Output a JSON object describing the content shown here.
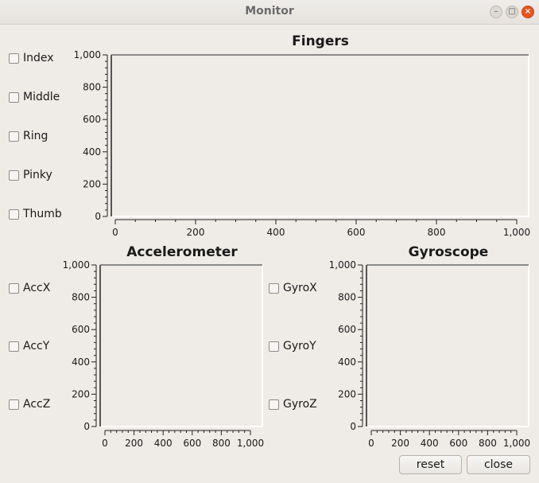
{
  "window": {
    "title": "Monitor"
  },
  "fingers": {
    "title": "Fingers",
    "checkboxes": [
      "Index",
      "Middle",
      "Ring",
      "Pinky",
      "Thumb"
    ],
    "y_ticks": [
      "1,000",
      "800",
      "600",
      "400",
      "200",
      "0"
    ],
    "x_ticks": [
      "0",
      "200",
      "400",
      "600",
      "800",
      "1,000"
    ]
  },
  "accelerometer": {
    "title": "Accelerometer",
    "checkboxes": [
      "AccX",
      "AccY",
      "AccZ"
    ],
    "y_ticks": [
      "1,000",
      "800",
      "600",
      "400",
      "200",
      "0"
    ],
    "x_ticks": [
      "0",
      "200",
      "400",
      "600",
      "800",
      "1,000"
    ]
  },
  "gyroscope": {
    "title": "Gyroscope",
    "checkboxes": [
      "GyroX",
      "GyroY",
      "GyroZ"
    ],
    "y_ticks": [
      "1,000",
      "800",
      "600",
      "400",
      "200",
      "0"
    ],
    "x_ticks": [
      "0",
      "200",
      "400",
      "600",
      "800",
      "1,000"
    ]
  },
  "buttons": {
    "reset": "reset",
    "close": "close"
  },
  "chart_data": [
    {
      "type": "line",
      "title": "Fingers",
      "series": [],
      "xlim": [
        0,
        1000
      ],
      "ylim": [
        0,
        1000
      ]
    },
    {
      "type": "line",
      "title": "Accelerometer",
      "series": [],
      "xlim": [
        0,
        1000
      ],
      "ylim": [
        0,
        1000
      ]
    },
    {
      "type": "line",
      "title": "Gyroscope",
      "series": [],
      "xlim": [
        0,
        1000
      ],
      "ylim": [
        0,
        1000
      ]
    }
  ]
}
